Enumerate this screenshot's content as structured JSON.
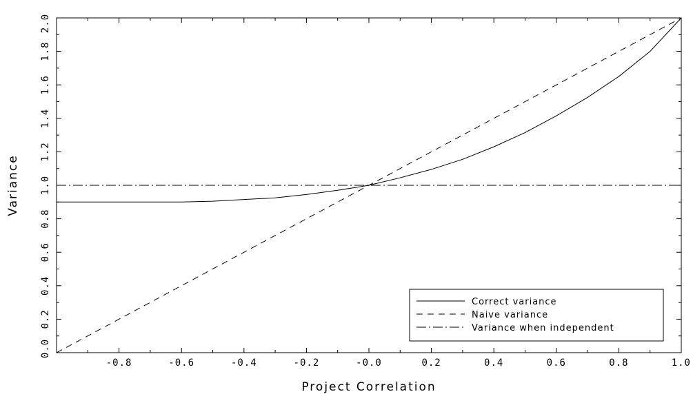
{
  "chart_data": {
    "type": "line",
    "xlabel": "Project Correlation",
    "ylabel": "Variance",
    "xlim": [
      -1.0,
      1.0
    ],
    "ylim": [
      0.0,
      2.0
    ],
    "x_ticks": [
      "-0.8",
      "-0.6",
      "-0.4",
      "-0.2",
      "-0.0",
      "0.2",
      "0.4",
      "0.6",
      "0.8",
      "1.0"
    ],
    "y_ticks": [
      "0.0",
      "0.2",
      "0.4",
      "0.6",
      "0.8",
      "1.0",
      "1.2",
      "1.4",
      "1.6",
      "1.8",
      "2.0"
    ],
    "grid": false,
    "legend_position": "bottom-right",
    "series": [
      {
        "name": "Correct variance",
        "style": "solid",
        "x": [
          -1.0,
          -0.9,
          -0.8,
          -0.7,
          -0.6,
          -0.5,
          -0.4,
          -0.3,
          -0.2,
          -0.1,
          0.0,
          0.1,
          0.2,
          0.3,
          0.4,
          0.5,
          0.6,
          0.7,
          0.8,
          0.9,
          1.0
        ],
        "y": [
          0.9,
          0.9,
          0.9,
          0.9,
          0.9,
          0.905,
          0.915,
          0.925,
          0.945,
          0.97,
          1.0,
          1.045,
          1.095,
          1.155,
          1.23,
          1.315,
          1.415,
          1.525,
          1.65,
          1.8,
          2.0
        ]
      },
      {
        "name": "Naive variance",
        "style": "dashed",
        "x": [
          -1.0,
          1.0
        ],
        "y": [
          0.0,
          2.0
        ]
      },
      {
        "name": "Variance when independent",
        "style": "dashdot",
        "x": [
          -1.0,
          1.0
        ],
        "y": [
          1.0,
          1.0
        ]
      }
    ]
  }
}
